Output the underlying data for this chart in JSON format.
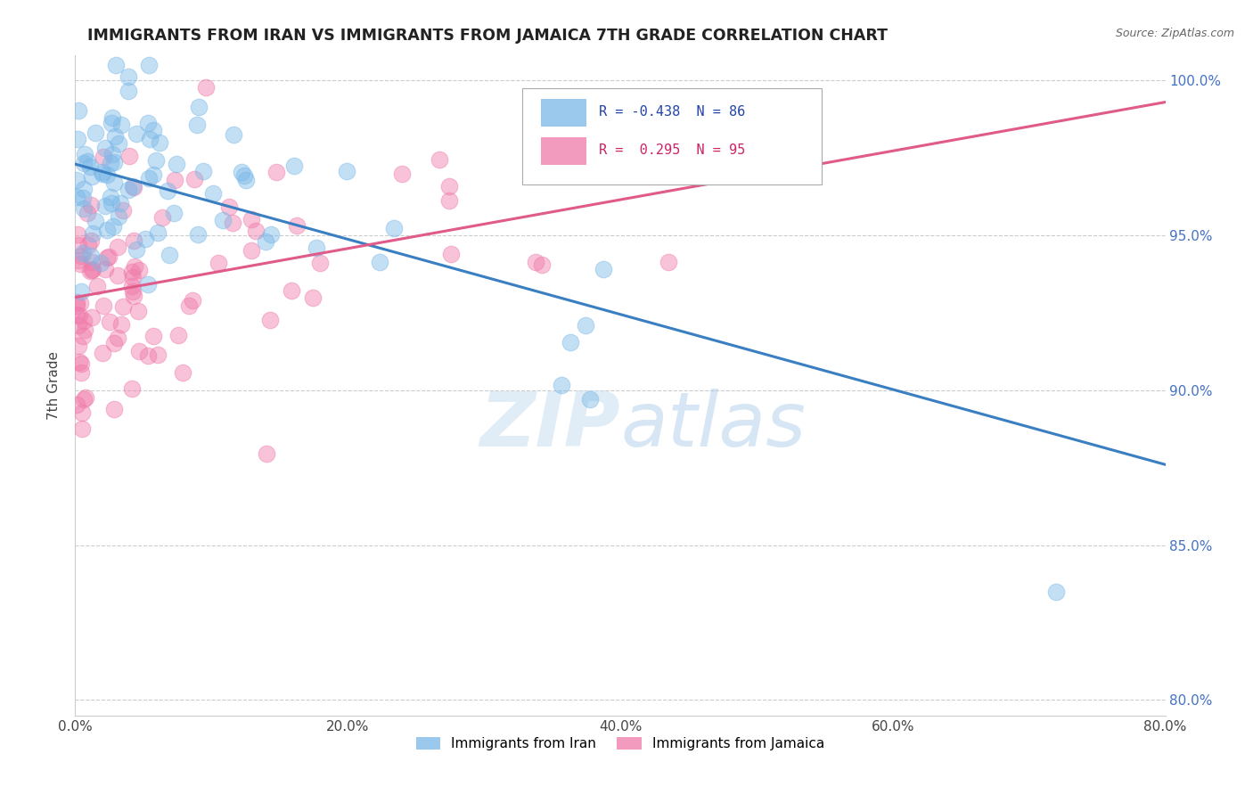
{
  "title": "IMMIGRANTS FROM IRAN VS IMMIGRANTS FROM JAMAICA 7TH GRADE CORRELATION CHART",
  "source": "Source: ZipAtlas.com",
  "ylabel": "7th Grade",
  "xlim": [
    0.0,
    0.8
  ],
  "ylim": [
    0.795,
    1.008
  ],
  "xtick_labels": [
    "0.0%",
    "20.0%",
    "40.0%",
    "60.0%",
    "80.0%"
  ],
  "xtick_vals": [
    0.0,
    0.2,
    0.4,
    0.6,
    0.8
  ],
  "ytick_labels": [
    "80.0%",
    "85.0%",
    "90.0%",
    "95.0%",
    "100.0%"
  ],
  "ytick_vals": [
    0.8,
    0.85,
    0.9,
    0.95,
    1.0
  ],
  "iran_color": "#7ab8e8",
  "jamaica_color": "#f07aaa",
  "iran_R": -0.438,
  "iran_N": 86,
  "jamaica_R": 0.295,
  "jamaica_N": 95,
  "iran_line_color": "#3a7fc1",
  "jamaica_line_color": "#e05a8a",
  "iran_line_x0": 0.0,
  "iran_line_y0": 0.973,
  "iran_line_x1": 0.8,
  "iran_line_y1": 0.876,
  "jamaica_line_x0": 0.0,
  "jamaica_line_y0": 0.93,
  "jamaica_line_x1": 0.8,
  "jamaica_line_y1": 0.993,
  "watermark_zip": "ZIP",
  "watermark_atlas": "atlas",
  "legend_iran": "Immigrants from Iran",
  "legend_jamaica": "Immigrants from Jamaica"
}
